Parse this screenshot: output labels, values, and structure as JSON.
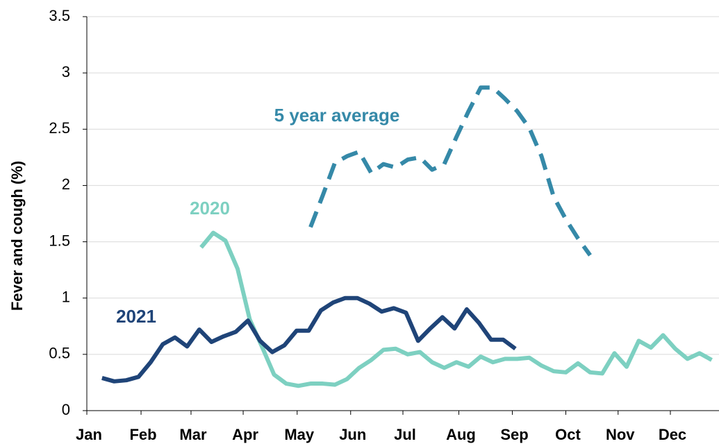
{
  "chart_data": {
    "type": "line",
    "ylabel": "Fever and cough (%)",
    "xlim": [
      0,
      52
    ],
    "xticks": [
      {
        "value": 0,
        "label": "Jan"
      },
      {
        "value": 4.46,
        "label": "Feb"
      },
      {
        "value": 8.57,
        "label": "Mar"
      },
      {
        "value": 12.86,
        "label": "Apr"
      },
      {
        "value": 17.3,
        "label": "May"
      },
      {
        "value": 21.7,
        "label": "Jun"
      },
      {
        "value": 26,
        "label": "Jul"
      },
      {
        "value": 30.6,
        "label": "Aug"
      },
      {
        "value": 35,
        "label": "Sep"
      },
      {
        "value": 39.4,
        "label": "Oct"
      },
      {
        "value": 43.7,
        "label": "Nov"
      },
      {
        "value": 48,
        "label": "Dec"
      }
    ],
    "ylim": [
      0,
      3.5
    ],
    "yticks": [
      0,
      0.5,
      1,
      1.5,
      2,
      2.5,
      3,
      3.5
    ],
    "grid": true,
    "series": [
      {
        "name": "5 year average",
        "color": "#3589a8",
        "dashed": true,
        "x": [
          18.4,
          19.4,
          20.4,
          21.4,
          22.4,
          23.4,
          24.4,
          25.4,
          26.4,
          27.4,
          28.4,
          29.4,
          30.4,
          31.4,
          32.4,
          33.4,
          34.4,
          35.4,
          36.4,
          37.4,
          38.4,
          39.4,
          40.4,
          41.4
        ],
        "values": [
          1.63,
          1.91,
          2.2,
          2.26,
          2.3,
          2.11,
          2.19,
          2.16,
          2.23,
          2.25,
          2.14,
          2.19,
          2.43,
          2.66,
          2.87,
          2.87,
          2.77,
          2.66,
          2.51,
          2.26,
          1.9,
          1.7,
          1.53,
          1.38
        ]
      },
      {
        "name": "2020",
        "color": "#7dd0c1",
        "dashed": false,
        "x": [
          9.4,
          10.4,
          11.4,
          12.4,
          13.4,
          14.4,
          15.4,
          16.4,
          17.4,
          18.4,
          19.4,
          20.4,
          21.4,
          22.4,
          23.4,
          24.4,
          25.4,
          26.4,
          27.4,
          28.4,
          29.4,
          30.4,
          31.4,
          32.4,
          33.4,
          34.4,
          35.4,
          36.4,
          37.4,
          38.4,
          39.4,
          40.4,
          41.4,
          42.4,
          43.4,
          44.4,
          45.4,
          46.4,
          47.4,
          48.4,
          49.4,
          50.4,
          51.4
        ],
        "values": [
          1.45,
          1.58,
          1.51,
          1.26,
          0.81,
          0.57,
          0.32,
          0.24,
          0.22,
          0.24,
          0.24,
          0.23,
          0.28,
          0.38,
          0.45,
          0.54,
          0.55,
          0.5,
          0.52,
          0.43,
          0.38,
          0.43,
          0.39,
          0.48,
          0.43,
          0.46,
          0.46,
          0.47,
          0.4,
          0.35,
          0.34,
          0.42,
          0.34,
          0.33,
          0.51,
          0.39,
          0.62,
          0.56,
          0.67,
          0.55,
          0.46,
          0.51,
          0.45
        ]
      },
      {
        "name": "2021",
        "color": "#1f4478",
        "dashed": false,
        "x": [
          1.25,
          2.25,
          3.25,
          4.25,
          5.25,
          6.25,
          7.25,
          8.25,
          9.25,
          10.25,
          11.25,
          12.25,
          13.25,
          14.25,
          15.25,
          16.25,
          17.25,
          18.25,
          19.25,
          20.25,
          21.25,
          22.25,
          23.25,
          24.25,
          25.25,
          26.25,
          27.25,
          28.25,
          29.25,
          30.25,
          31.25,
          32.25,
          33.25,
          34.25,
          35.25
        ],
        "values": [
          0.29,
          0.26,
          0.27,
          0.3,
          0.43,
          0.59,
          0.65,
          0.57,
          0.72,
          0.61,
          0.66,
          0.7,
          0.8,
          0.62,
          0.52,
          0.58,
          0.71,
          0.71,
          0.89,
          0.96,
          1.0,
          1.0,
          0.95,
          0.88,
          0.91,
          0.87,
          0.62,
          0.73,
          0.83,
          0.73,
          0.9,
          0.78,
          0.63,
          0.63,
          0.55
        ]
      }
    ]
  }
}
